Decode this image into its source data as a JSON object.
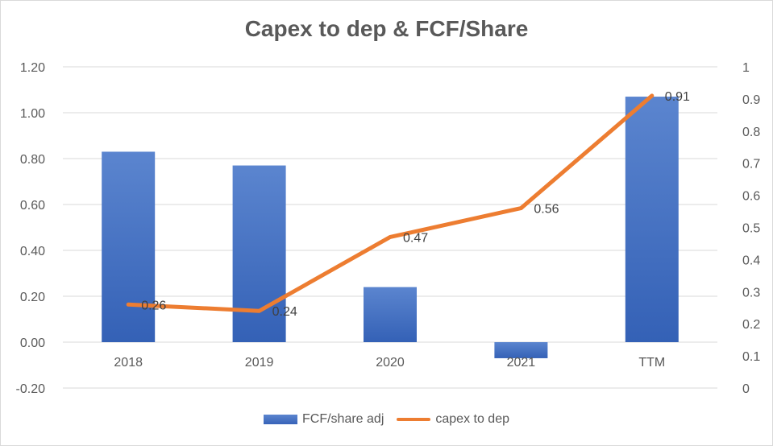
{
  "chart_data": {
    "type": "bar",
    "title": "Capex to dep &  FCF/Share",
    "categories": [
      "2018",
      "2019",
      "2020",
      "2021",
      "TTM"
    ],
    "series": [
      {
        "name": "FCF/share adj",
        "type": "bar",
        "axis": "left",
        "values": [
          0.83,
          0.77,
          0.24,
          -0.07,
          1.07
        ],
        "color": "#4472c4"
      },
      {
        "name": "capex to dep",
        "type": "line",
        "axis": "right",
        "values": [
          0.26,
          0.24,
          0.47,
          0.56,
          0.91
        ],
        "labels": [
          "0.26",
          "0.24",
          "0.47",
          "0.56",
          "0.91"
        ],
        "color": "#ed7d31"
      }
    ],
    "left_axis": {
      "ylim": [
        -0.2,
        1.2
      ],
      "ticks": [
        "-0.20",
        "0.00",
        "0.20",
        "0.40",
        "0.60",
        "0.80",
        "1.00",
        "1.20"
      ]
    },
    "right_axis": {
      "ylim": [
        0,
        1
      ],
      "ticks": [
        "0",
        "0.1",
        "0.2",
        "0.3",
        "0.4",
        "0.5",
        "0.6",
        "0.7",
        "0.8",
        "0.9",
        "1"
      ]
    },
    "grid": true,
    "legend_position": "bottom"
  }
}
